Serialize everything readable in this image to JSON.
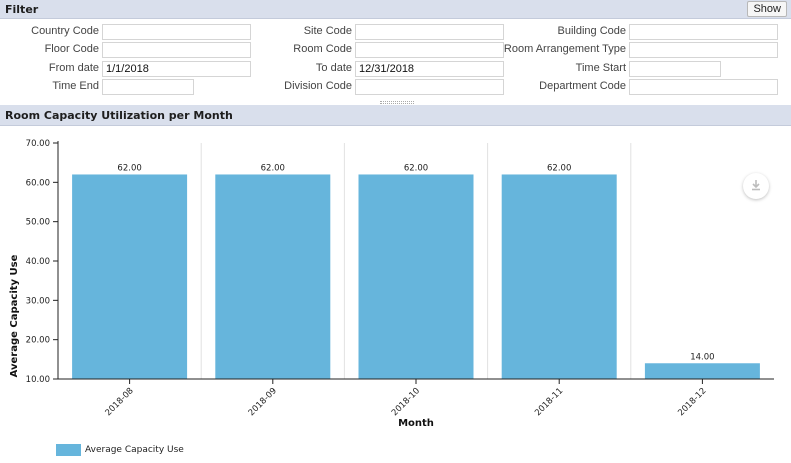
{
  "filter": {
    "title": "Filter",
    "show_label": "Show",
    "fields": {
      "country_code": {
        "label": "Country Code",
        "value": ""
      },
      "site_code": {
        "label": "Site Code",
        "value": ""
      },
      "building_code": {
        "label": "Building Code",
        "value": ""
      },
      "floor_code": {
        "label": "Floor Code",
        "value": ""
      },
      "room_code": {
        "label": "Room Code",
        "value": ""
      },
      "room_arrangement_type": {
        "label": "Room Arrangement Type",
        "value": ""
      },
      "from_date": {
        "label": "From date",
        "value": "1/1/2018"
      },
      "to_date": {
        "label": "To date",
        "value": "12/31/2018"
      },
      "time_start": {
        "label": "Time Start",
        "value": ""
      },
      "time_end": {
        "label": "Time End",
        "value": ""
      },
      "division_code": {
        "label": "Division Code",
        "value": ""
      },
      "department_code": {
        "label": "Department Code",
        "value": ""
      }
    }
  },
  "chart_panel": {
    "title": "Room Capacity Utilization per Month"
  },
  "chart_data": {
    "type": "bar",
    "categories": [
      "2018-08",
      "2018-09",
      "2018-10",
      "2018-11",
      "2018-12"
    ],
    "series": [
      {
        "name": "Average Capacity Use",
        "values": [
          62.0,
          62.0,
          62.0,
          62.0,
          14.0
        ],
        "color": "#66b5dc"
      }
    ],
    "data_labels": [
      "62.00",
      "62.00",
      "62.00",
      "62.00",
      "14.00"
    ],
    "xlabel": "Month",
    "ylabel": "Average Capacity Use",
    "ylim": [
      10,
      70
    ],
    "yticks": [
      10,
      20,
      30,
      40,
      50,
      60,
      70
    ],
    "ytick_labels": [
      "10.00",
      "20.00",
      "30.00",
      "40.00",
      "50.00",
      "60.00",
      "70.00"
    ],
    "grid": "vertical",
    "legend": "bottom-left"
  },
  "icons": {
    "download": "download-icon"
  }
}
